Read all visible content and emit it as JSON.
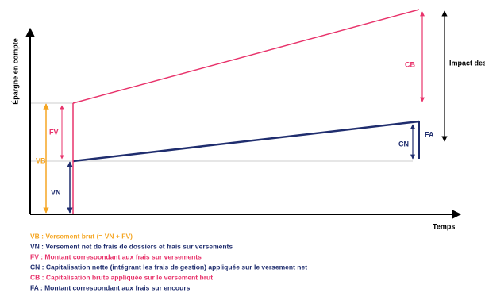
{
  "axes": {
    "y_label": "Épargne en compte",
    "x_label": "Temps"
  },
  "labels": {
    "vb": "VB",
    "fv": "FV",
    "vn": "VN",
    "cb": "CB",
    "cn": "CN",
    "fa": "FA",
    "impact": "Impact des frais"
  },
  "legend": [
    {
      "text": "VB : Versement brut (= VN + FV)",
      "color": "#f5a623"
    },
    {
      "text": "VN : Versement net de frais de dossiers et frais sur versements",
      "color": "#1f2d6e"
    },
    {
      "text": "FV : Montant correspondant aux frais sur versements",
      "color": "#e8336b"
    },
    {
      "text": "CN : Capitalisation nette (intégrant les frais de gestion) appliquée sur le versement net",
      "color": "#1f2d6e"
    },
    {
      "text": "CB : Capitalisation brute appliquée sur le versement brut",
      "color": "#e8336b"
    },
    {
      "text": "FA : Montant correspondant aux frais sur encours",
      "color": "#1f2d6e"
    }
  ]
}
